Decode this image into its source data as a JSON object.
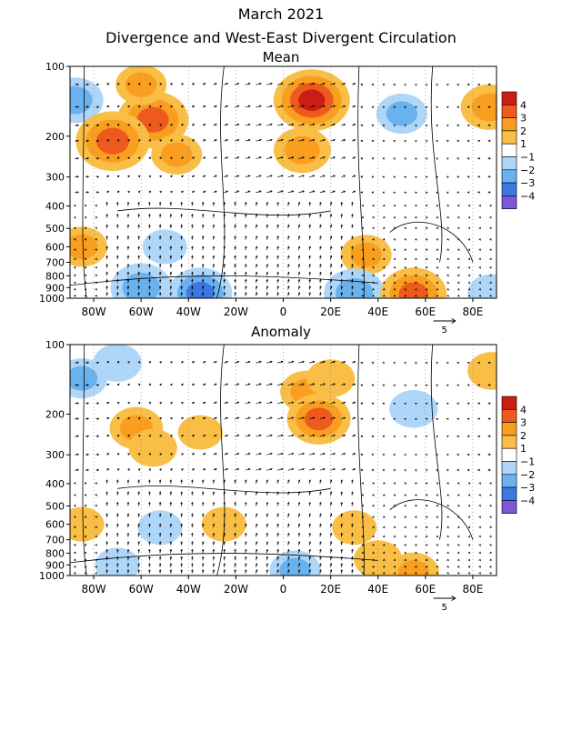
{
  "title": "March 2021",
  "subtitle": "Divergence and West-East Divergent Circulation",
  "colors": {
    "ticks": [
      "4",
      "3",
      "2",
      "1",
      "−1",
      "−2",
      "−3",
      "−4"
    ],
    "swatches": [
      "#c81e14",
      "#ee5a1e",
      "#f99e1f",
      "#f9be46",
      "#ffffff",
      "#aed6f8",
      "#6ab2ee",
      "#3b78e6",
      "#7c58d8"
    ]
  },
  "chart_data": [
    {
      "type": "heatmap",
      "title": "Mean",
      "variable": "divergence with divergent circulation vectors",
      "x_ticks": [
        "80W",
        "60W",
        "40W",
        "20W",
        "0",
        "20E",
        "40E",
        "60E",
        "80E"
      ],
      "x_values": [
        -80,
        -60,
        -40,
        -20,
        0,
        20,
        40,
        60,
        80
      ],
      "xlim": [
        -90,
        90
      ],
      "y_ticks": [
        "100",
        "200",
        "300",
        "400",
        "500",
        "600",
        "700",
        "800",
        "900",
        "1000"
      ],
      "y_values": [
        100,
        200,
        300,
        400,
        500,
        600,
        700,
        800,
        900,
        1000
      ],
      "ylim": [
        1000,
        100
      ],
      "y_scale": "log",
      "reference_vector_label": "5",
      "blobs": [
        {
          "lon": -88,
          "p": 140,
          "value": -2.5
        },
        {
          "lon": -55,
          "p": 170,
          "value": 3.6
        },
        {
          "lon": -72,
          "p": 210,
          "value": 3.8
        },
        {
          "lon": -45,
          "p": 240,
          "value": 2.0
        },
        {
          "lon": -60,
          "p": 120,
          "value": 2.0
        },
        {
          "lon": 12,
          "p": 140,
          "value": 4.0
        },
        {
          "lon": 8,
          "p": 230,
          "value": 2.5
        },
        {
          "lon": 50,
          "p": 160,
          "value": -2.0
        },
        {
          "lon": 87,
          "p": 150,
          "value": 2.5
        },
        {
          "lon": -85,
          "p": 600,
          "value": 2.0
        },
        {
          "lon": -50,
          "p": 600,
          "value": -1.5
        },
        {
          "lon": 35,
          "p": 650,
          "value": 2.0
        },
        {
          "lon": -60,
          "p": 900,
          "value": -2.8
        },
        {
          "lon": -35,
          "p": 950,
          "value": -3.0
        },
        {
          "lon": 30,
          "p": 950,
          "value": -2.8
        },
        {
          "lon": 55,
          "p": 960,
          "value": 3.2
        },
        {
          "lon": 88,
          "p": 950,
          "value": -1.8
        }
      ]
    },
    {
      "type": "heatmap",
      "title": "Anomaly",
      "variable": "divergence anomaly with divergent circulation vectors",
      "x_ticks": [
        "80W",
        "60W",
        "40W",
        "20W",
        "0",
        "20E",
        "40E",
        "60E",
        "80E"
      ],
      "x_values": [
        -80,
        -60,
        -40,
        -20,
        0,
        20,
        40,
        60,
        80
      ],
      "xlim": [
        -90,
        90
      ],
      "y_ticks": [
        "100",
        "200",
        "300",
        "400",
        "500",
        "600",
        "700",
        "800",
        "900",
        "1000"
      ],
      "y_values": [
        100,
        200,
        300,
        400,
        500,
        600,
        700,
        800,
        900,
        1000
      ],
      "ylim": [
        1000,
        100
      ],
      "y_scale": "log",
      "reference_vector_label": "5",
      "blobs": [
        {
          "lon": -85,
          "p": 140,
          "value": -2.0
        },
        {
          "lon": -70,
          "p": 120,
          "value": -1.8
        },
        {
          "lon": -62,
          "p": 230,
          "value": 2.2
        },
        {
          "lon": -55,
          "p": 280,
          "value": 1.8
        },
        {
          "lon": -35,
          "p": 240,
          "value": 1.5
        },
        {
          "lon": 10,
          "p": 160,
          "value": 2.2
        },
        {
          "lon": 15,
          "p": 210,
          "value": 3.0
        },
        {
          "lon": 20,
          "p": 140,
          "value": 1.8
        },
        {
          "lon": 55,
          "p": 190,
          "value": -1.8
        },
        {
          "lon": 88,
          "p": 130,
          "value": 1.8
        },
        {
          "lon": -52,
          "p": 620,
          "value": -1.5
        },
        {
          "lon": -85,
          "p": 600,
          "value": 1.5
        },
        {
          "lon": -25,
          "p": 600,
          "value": 1.5
        },
        {
          "lon": 30,
          "p": 620,
          "value": 1.5
        },
        {
          "lon": 5,
          "p": 950,
          "value": -2.0
        },
        {
          "lon": -70,
          "p": 900,
          "value": -1.5
        },
        {
          "lon": 40,
          "p": 850,
          "value": 1.8
        },
        {
          "lon": 55,
          "p": 970,
          "value": 2.0
        }
      ]
    }
  ]
}
